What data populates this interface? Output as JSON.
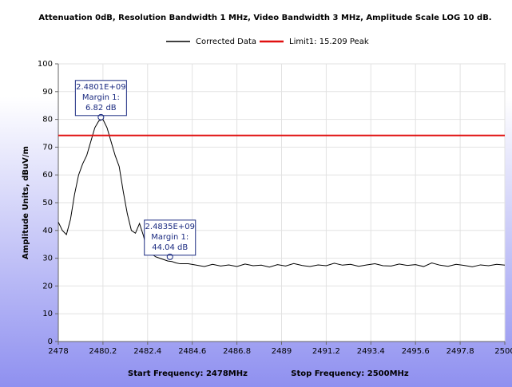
{
  "chart_data": {
    "type": "line",
    "title": "Attenuation 0dB, Resolution Bandwidth 1 MHz, Video Bandwidth 3 MHz, Amplitude Scale LOG 10 dB.",
    "ylabel": "Amplitude Units, dBuV/m",
    "x_labels": [
      "Start Frequency: 2478MHz",
      "Stop Frequency: 2500MHz"
    ],
    "xlim": [
      2478,
      2500
    ],
    "xticks": [
      2478,
      2480.2,
      2482.4,
      2484.6,
      2486.8,
      2489,
      2491.2,
      2493.4,
      2495.6,
      2497.8,
      2500
    ],
    "ylim": [
      0,
      100
    ],
    "yticks": [
      0,
      10,
      20,
      30,
      40,
      50,
      60,
      70,
      80,
      90,
      100
    ],
    "grid": true,
    "legend": "top",
    "series": [
      {
        "name": "Corrected Data",
        "color": "#000000",
        "x": [
          2478.0,
          2478.2,
          2478.4,
          2478.6,
          2478.8,
          2479.0,
          2479.2,
          2479.4,
          2479.6,
          2479.8,
          2480.0,
          2480.2,
          2480.4,
          2480.6,
          2480.8,
          2481.0,
          2481.2,
          2481.4,
          2481.6,
          2481.8,
          2482.0,
          2482.2,
          2482.4,
          2482.6,
          2482.8,
          2483.0,
          2483.2,
          2483.4,
          2483.6,
          2483.8,
          2484.0,
          2484.4,
          2484.8,
          2485.2,
          2485.6,
          2486.0,
          2486.4,
          2486.8,
          2487.2,
          2487.6,
          2488.0,
          2488.4,
          2488.8,
          2489.2,
          2489.6,
          2490.0,
          2490.4,
          2490.8,
          2491.2,
          2491.6,
          2492.0,
          2492.4,
          2492.8,
          2493.2,
          2493.6,
          2494.0,
          2494.4,
          2494.8,
          2495.2,
          2495.6,
          2496.0,
          2496.4,
          2496.8,
          2497.2,
          2497.6,
          2498.0,
          2498.4,
          2498.8,
          2499.2,
          2499.6,
          2500.0
        ],
        "values": [
          43,
          40,
          38.5,
          44,
          53,
          60,
          64,
          67,
          72,
          77,
          79.5,
          80,
          77,
          72,
          67,
          63,
          54,
          46,
          40,
          39,
          42.5,
          38,
          32,
          31.5,
          30.5,
          30,
          29.5,
          29,
          28.8,
          28.3,
          28,
          28,
          27.5,
          27,
          27.8,
          27.2,
          27.6,
          27,
          27.9,
          27.3,
          27.5,
          26.8,
          27.7,
          27.2,
          28.1,
          27.4,
          27,
          27.6,
          27.3,
          28.2,
          27.5,
          27.8,
          27.1,
          27.6,
          28,
          27.3,
          27.2,
          27.9,
          27.4,
          27.7,
          27,
          28.3,
          27.5,
          27.1,
          27.8,
          27.4,
          26.9,
          27.6,
          27.3,
          27.8,
          27.5
        ]
      },
      {
        "name": "Limit1: 15.209 Peak",
        "color": "#e01010",
        "x": [
          2478,
          2500
        ],
        "values": [
          74.2,
          74.2
        ]
      }
    ],
    "annotations": [
      {
        "x": 2480.1,
        "y": 80.8,
        "lines": [
          "2.4801E+09",
          "Margin 1:",
          "6.82 dB"
        ]
      },
      {
        "x": 2483.5,
        "y": 30.5,
        "lines": [
          "2.4835E+09",
          "Margin 1:",
          "44.04 dB"
        ]
      }
    ]
  }
}
